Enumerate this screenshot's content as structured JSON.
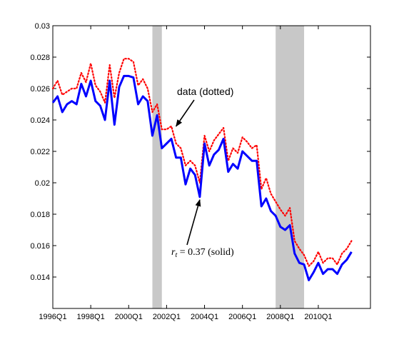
{
  "chart_data": {
    "type": "line",
    "title": "",
    "xlabel": "",
    "ylabel": "",
    "x_range": [
      "1996Q1",
      "2012Q4"
    ],
    "ylim": [
      0.012,
      0.03
    ],
    "yticks": [
      0.014,
      0.016,
      0.018,
      0.02,
      0.022,
      0.024,
      0.026,
      0.028,
      0.03
    ],
    "ytick_labels": [
      "0.014",
      "0.016",
      "0.018",
      "0.02",
      "0.022",
      "0.024",
      "0.026",
      "0.028",
      "0.03"
    ],
    "xtick_labels": [
      "1996Q1",
      "1998Q1",
      "2000Q1",
      "2002Q1",
      "2004Q1",
      "2006Q1",
      "2008Q1",
      "2010Q1"
    ],
    "grid": false,
    "shaded_periods": [
      {
        "start": "2001Q2",
        "end": "2001Q4"
      },
      {
        "start": "2007Q4",
        "end": "2009Q2"
      }
    ],
    "series": [
      {
        "style": "solid",
        "color": "#0000ff",
        "values": [
          0.0251,
          0.0255,
          0.0245,
          0.025,
          0.0252,
          0.025,
          0.0263,
          0.0255,
          0.0265,
          0.0252,
          0.0249,
          0.024,
          0.0265,
          0.0237,
          0.0261,
          0.0268,
          0.0268,
          0.0267,
          0.025,
          0.0255,
          0.0252,
          0.023,
          0.0243,
          0.0222,
          0.0225,
          0.0228,
          0.0216,
          0.0216,
          0.0199,
          0.0209,
          0.0205,
          0.0191,
          0.0225,
          0.0211,
          0.0218,
          0.0221,
          0.0228,
          0.0207,
          0.0212,
          0.0209,
          0.022,
          0.0217,
          0.0214,
          0.0214,
          0.0185,
          0.019,
          0.0182,
          0.0179,
          0.0172,
          0.017,
          0.0173,
          0.0155,
          0.0149,
          0.0148,
          0.0138,
          0.0143,
          0.0149,
          0.0142,
          0.0145,
          0.0145,
          0.0142,
          0.0148,
          0.0151,
          0.0156
        ]
      },
      {
        "style": "dotted",
        "color": "#ff0000",
        "values": [
          0.026,
          0.0265,
          0.0256,
          0.0258,
          0.026,
          0.026,
          0.027,
          0.0264,
          0.0276,
          0.0262,
          0.0258,
          0.0251,
          0.0275,
          0.0254,
          0.027,
          0.0279,
          0.0279,
          0.0277,
          0.0262,
          0.0266,
          0.026,
          0.0245,
          0.025,
          0.0234,
          0.0234,
          0.0236,
          0.0225,
          0.0222,
          0.0211,
          0.0214,
          0.0211,
          0.02,
          0.023,
          0.022,
          0.0227,
          0.0231,
          0.0235,
          0.0214,
          0.0222,
          0.0219,
          0.0229,
          0.0226,
          0.0222,
          0.0224,
          0.0196,
          0.0203,
          0.0193,
          0.0188,
          0.0183,
          0.0179,
          0.0184,
          0.0163,
          0.0158,
          0.0154,
          0.0147,
          0.015,
          0.0156,
          0.0149,
          0.0152,
          0.0152,
          0.0148,
          0.0155,
          0.0158,
          0.0163
        ]
      }
    ],
    "annotations": [
      {
        "text": "data (dotted)",
        "arrow_to": {
          "x": "2002Q3",
          "y": 0.0236
        }
      },
      {
        "text": "r_t = 0.37 (solid)",
        "arrow_to": {
          "x": "2003Q4",
          "y": 0.0191
        }
      }
    ]
  }
}
